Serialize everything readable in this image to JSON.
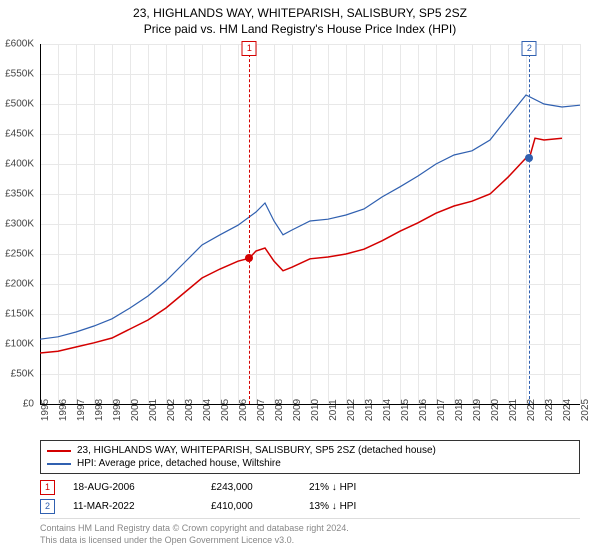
{
  "header": {
    "title": "23, HIGHLANDS WAY, WHITEPARISH, SALISBURY, SP5 2SZ",
    "subtitle": "Price paid vs. HM Land Registry's House Price Index (HPI)"
  },
  "chart": {
    "type": "line",
    "background_color": "#ffffff",
    "grid_color": "#e8e8e8",
    "axis_color": "#000000",
    "text_color": "#444444",
    "title_fontsize": 12,
    "label_fontsize": 10,
    "ylim": [
      0,
      600000
    ],
    "ytick_step": 50000,
    "yticks": [
      "£0",
      "£50K",
      "£100K",
      "£150K",
      "£200K",
      "£250K",
      "£300K",
      "£350K",
      "£400K",
      "£450K",
      "£500K",
      "£550K",
      "£600K"
    ],
    "xlim": [
      1995,
      2025
    ],
    "xticks": [
      1995,
      1996,
      1997,
      1998,
      1999,
      2000,
      2001,
      2002,
      2003,
      2004,
      2005,
      2006,
      2007,
      2008,
      2009,
      2010,
      2011,
      2012,
      2013,
      2014,
      2015,
      2016,
      2017,
      2018,
      2019,
      2020,
      2021,
      2022,
      2023,
      2024,
      2025
    ],
    "series": [
      {
        "name": "price_paid",
        "label": "23, HIGHLANDS WAY, WHITEPARISH, SALISBURY, SP5 2SZ (detached house)",
        "color": "#d40000",
        "line_width": 1.5,
        "data": [
          [
            1995,
            85000
          ],
          [
            1996,
            88000
          ],
          [
            1997,
            95000
          ],
          [
            1998,
            102000
          ],
          [
            1999,
            110000
          ],
          [
            2000,
            125000
          ],
          [
            2001,
            140000
          ],
          [
            2002,
            160000
          ],
          [
            2003,
            185000
          ],
          [
            2004,
            210000
          ],
          [
            2005,
            225000
          ],
          [
            2006,
            238000
          ],
          [
            2006.63,
            243000
          ],
          [
            2007,
            255000
          ],
          [
            2007.5,
            260000
          ],
          [
            2008,
            238000
          ],
          [
            2008.5,
            222000
          ],
          [
            2009,
            228000
          ],
          [
            2010,
            242000
          ],
          [
            2011,
            245000
          ],
          [
            2012,
            250000
          ],
          [
            2013,
            258000
          ],
          [
            2014,
            272000
          ],
          [
            2015,
            288000
          ],
          [
            2016,
            302000
          ],
          [
            2017,
            318000
          ],
          [
            2018,
            330000
          ],
          [
            2019,
            338000
          ],
          [
            2020,
            350000
          ],
          [
            2021,
            378000
          ],
          [
            2022,
            410000
          ],
          [
            2022.19,
            410000
          ],
          [
            2022.5,
            443000
          ],
          [
            2023,
            440000
          ],
          [
            2024,
            443000
          ]
        ]
      },
      {
        "name": "hpi",
        "label": "HPI: Average price, detached house, Wiltshire",
        "color": "#3060b0",
        "line_width": 1.2,
        "data": [
          [
            1995,
            108000
          ],
          [
            1996,
            112000
          ],
          [
            1997,
            120000
          ],
          [
            1998,
            130000
          ],
          [
            1999,
            142000
          ],
          [
            2000,
            160000
          ],
          [
            2001,
            180000
          ],
          [
            2002,
            205000
          ],
          [
            2003,
            235000
          ],
          [
            2004,
            265000
          ],
          [
            2005,
            282000
          ],
          [
            2006,
            298000
          ],
          [
            2007,
            320000
          ],
          [
            2007.5,
            335000
          ],
          [
            2008,
            305000
          ],
          [
            2008.5,
            282000
          ],
          [
            2009,
            290000
          ],
          [
            2010,
            305000
          ],
          [
            2011,
            308000
          ],
          [
            2012,
            315000
          ],
          [
            2013,
            325000
          ],
          [
            2014,
            345000
          ],
          [
            2015,
            362000
          ],
          [
            2016,
            380000
          ],
          [
            2017,
            400000
          ],
          [
            2018,
            415000
          ],
          [
            2019,
            422000
          ],
          [
            2020,
            440000
          ],
          [
            2021,
            478000
          ],
          [
            2022,
            515000
          ],
          [
            2023,
            500000
          ],
          [
            2024,
            495000
          ],
          [
            2025,
            498000
          ]
        ]
      }
    ],
    "markers": [
      {
        "id": "1",
        "x": 2006.63,
        "y": 243000,
        "color": "#d40000"
      },
      {
        "id": "2",
        "x": 2022.19,
        "y": 410000,
        "color": "#3060b0"
      }
    ]
  },
  "legend": {
    "items": [
      {
        "color": "#d40000",
        "label": "23, HIGHLANDS WAY, WHITEPARISH, SALISBURY, SP5 2SZ (detached house)"
      },
      {
        "color": "#3060b0",
        "label": "HPI: Average price, detached house, Wiltshire"
      }
    ]
  },
  "transactions": [
    {
      "id": "1",
      "color": "#d40000",
      "date": "18-AUG-2006",
      "price": "£243,000",
      "pct": "21% ↓ HPI"
    },
    {
      "id": "2",
      "color": "#3060b0",
      "date": "11-MAR-2022",
      "price": "£410,000",
      "pct": "13% ↓ HPI"
    }
  ],
  "footer": {
    "line1": "Contains HM Land Registry data © Crown copyright and database right 2024.",
    "line2": "This data is licensed under the Open Government Licence v3.0."
  }
}
